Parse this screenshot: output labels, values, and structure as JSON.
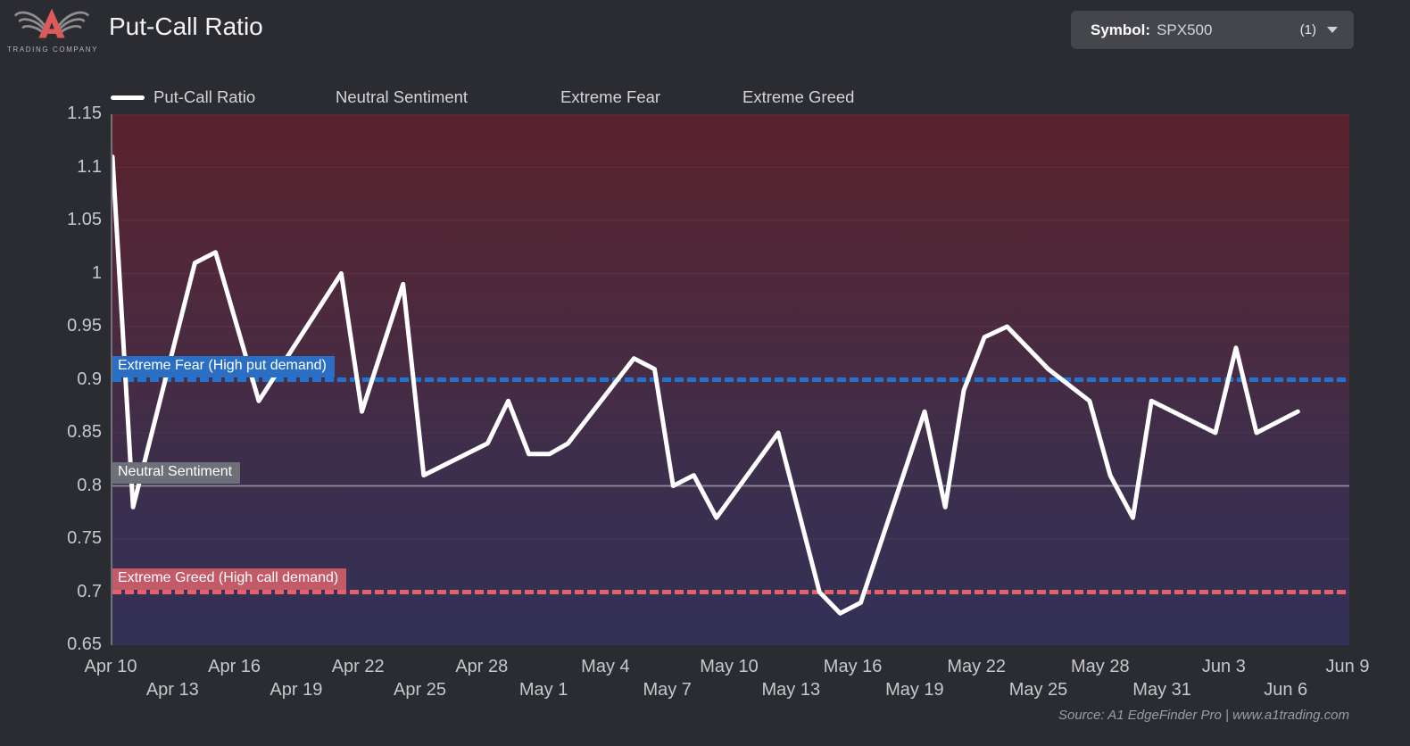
{
  "header": {
    "title": "Put-Call Ratio",
    "logo": {
      "subtitle": "TRADING COMPANY"
    },
    "symbol_selector": {
      "label": "Symbol:",
      "value": "SPX500",
      "count": "(1)"
    }
  },
  "legend": {
    "items": [
      {
        "label": "Put-Call Ratio",
        "swatch_color": "#ffffff"
      },
      {
        "label": "Neutral Sentiment"
      },
      {
        "label": "Extreme Fear"
      },
      {
        "label": "Extreme Greed"
      }
    ]
  },
  "chart_data": {
    "type": "line",
    "title": "Put-Call Ratio",
    "ylim": [
      0.65,
      1.15
    ],
    "x_range_days": 60,
    "grid": "faint-horizontal",
    "background_gradient": [
      "#5a222c",
      "#4c2a3e",
      "#3b2f4e",
      "#333057"
    ],
    "y_axis": {
      "labels": [
        "1.15",
        "1.1",
        "1.05",
        "1",
        "0.95",
        "0.9",
        "0.85",
        "0.8",
        "0.75",
        "0.7",
        "0.65"
      ],
      "values": [
        1.15,
        1.1,
        1.05,
        1.0,
        0.95,
        0.9,
        0.85,
        0.8,
        0.75,
        0.7,
        0.65
      ]
    },
    "x_axis": {
      "rows": [
        {
          "labels": [
            "Apr 10",
            "Apr 16",
            "Apr 22",
            "Apr 28",
            "May 4",
            "May 10",
            "May 16",
            "May 22",
            "May 28",
            "Jun 3",
            "Jun 9"
          ],
          "days": [
            0,
            6,
            12,
            18,
            24,
            30,
            36,
            42,
            48,
            54,
            60
          ]
        },
        {
          "labels": [
            "Apr 13",
            "Apr 19",
            "Apr 25",
            "May 1",
            "May 7",
            "May 13",
            "May 19",
            "May 25",
            "May 31",
            "Jun 6"
          ],
          "days": [
            3,
            9,
            15,
            21,
            27,
            33,
            39,
            45,
            51,
            57
          ]
        }
      ]
    },
    "series": [
      {
        "name": "Put-Call Ratio",
        "color": "#ffffff",
        "dates": [
          "Apr 10",
          "Apr 11",
          "Apr 14",
          "Apr 15",
          "Apr 17",
          "Apr 21",
          "Apr 22",
          "Apr 24",
          "Apr 25",
          "Apr 28",
          "Apr 29",
          "Apr 30",
          "May 1",
          "May 2",
          "May 5",
          "May 6",
          "May 7",
          "May 8",
          "May 9",
          "May 12",
          "May 14",
          "May 15",
          "May 16",
          "May 19",
          "May 20",
          "May 21",
          "May 22",
          "May 23",
          "May 25",
          "May 27",
          "May 28",
          "May 29",
          "May 30",
          "Jun 2",
          "Jun 3",
          "Jun 4",
          "Jun 6"
        ],
        "days": [
          0,
          1,
          4,
          5,
          7.1,
          11.1,
          12.1,
          14.1,
          15.1,
          18.2,
          19.2,
          20.2,
          21.2,
          22.1,
          25.3,
          26.3,
          27.2,
          28.2,
          29.3,
          32.3,
          34.3,
          35.3,
          36.3,
          39.4,
          40.4,
          41.3,
          42.3,
          43.4,
          45.4,
          47.4,
          48.4,
          49.5,
          50.4,
          53.5,
          54.5,
          55.5,
          57.5
        ],
        "values": [
          1.11,
          0.78,
          1.01,
          1.02,
          0.88,
          1.0,
          0.87,
          0.99,
          0.81,
          0.84,
          0.88,
          0.83,
          0.83,
          0.84,
          0.92,
          0.91,
          0.8,
          0.81,
          0.77,
          0.85,
          0.7,
          0.68,
          0.69,
          0.87,
          0.78,
          0.89,
          0.94,
          0.95,
          0.91,
          0.88,
          0.81,
          0.77,
          0.88,
          0.85,
          0.93,
          0.85,
          0.87
        ]
      }
    ],
    "reference_lines": [
      {
        "key": "extreme-fear",
        "label": "Extreme Fear (High put demand)",
        "value": 0.9,
        "color": "#2372d0",
        "label_bg": "#2b6fc4",
        "style": "dashed",
        "width": 5,
        "opacity": 1
      },
      {
        "key": "neutral-sentiment",
        "label": "Neutral Sentiment",
        "value": 0.8,
        "color": "#c3c6cf",
        "label_bg": "#6e7078",
        "style": "solid",
        "width": 2,
        "opacity": 0.55
      },
      {
        "key": "extreme-greed",
        "label": "Extreme Greed (High call demand)",
        "value": 0.7,
        "color": "#e2626b",
        "label_bg": "#c45a68",
        "style": "dashed",
        "width": 5,
        "opacity": 1
      }
    ]
  },
  "footer": {
    "source": "Source: A1 EdgeFinder Pro | www.a1trading.com"
  }
}
